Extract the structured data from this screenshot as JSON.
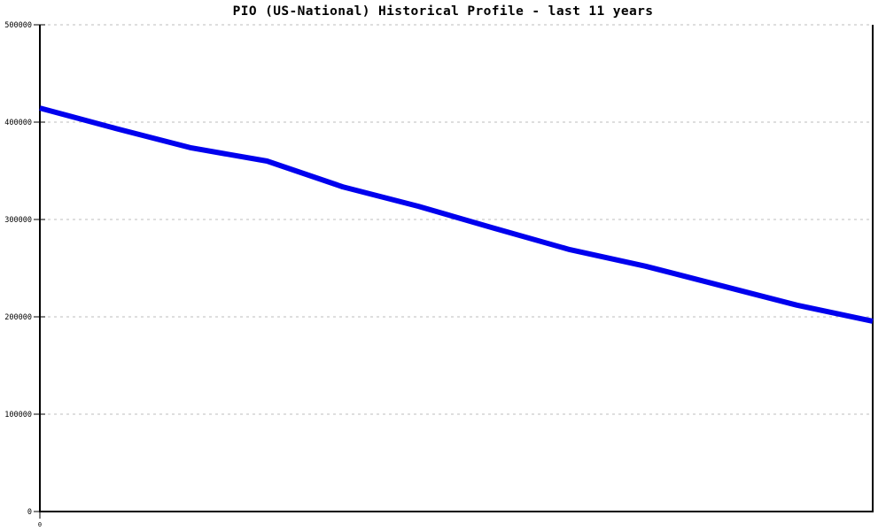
{
  "title": "PIO (US-National) Historical Profile - last 11 years",
  "colors": {
    "line": "#0000ee",
    "gridline": "#bdbdbd",
    "axis": "#000000",
    "background": "#ffffff",
    "text": "#000000"
  },
  "chart_data": {
    "type": "line",
    "title": "PIO (US-National) Historical Profile - last 11 years",
    "x": [
      0,
      1,
      2,
      3,
      4,
      5,
      6,
      7,
      8,
      9,
      10,
      11
    ],
    "values": [
      414500,
      393500,
      373500,
      360000,
      333500,
      313500,
      291000,
      269000,
      252000,
      232000,
      212000,
      195500
    ],
    "ylim": [
      0,
      500000
    ],
    "yticks": [
      0,
      100000,
      200000,
      300000,
      400000,
      500000
    ],
    "ytick_labels": [
      "0",
      "100000",
      "200000",
      "300000",
      "400000",
      "500000"
    ],
    "xtick_labels": [
      "0"
    ],
    "xlabel": "",
    "ylabel": "",
    "grid": "horizontal-dotted",
    "legend": "none",
    "line_width": 6
  }
}
